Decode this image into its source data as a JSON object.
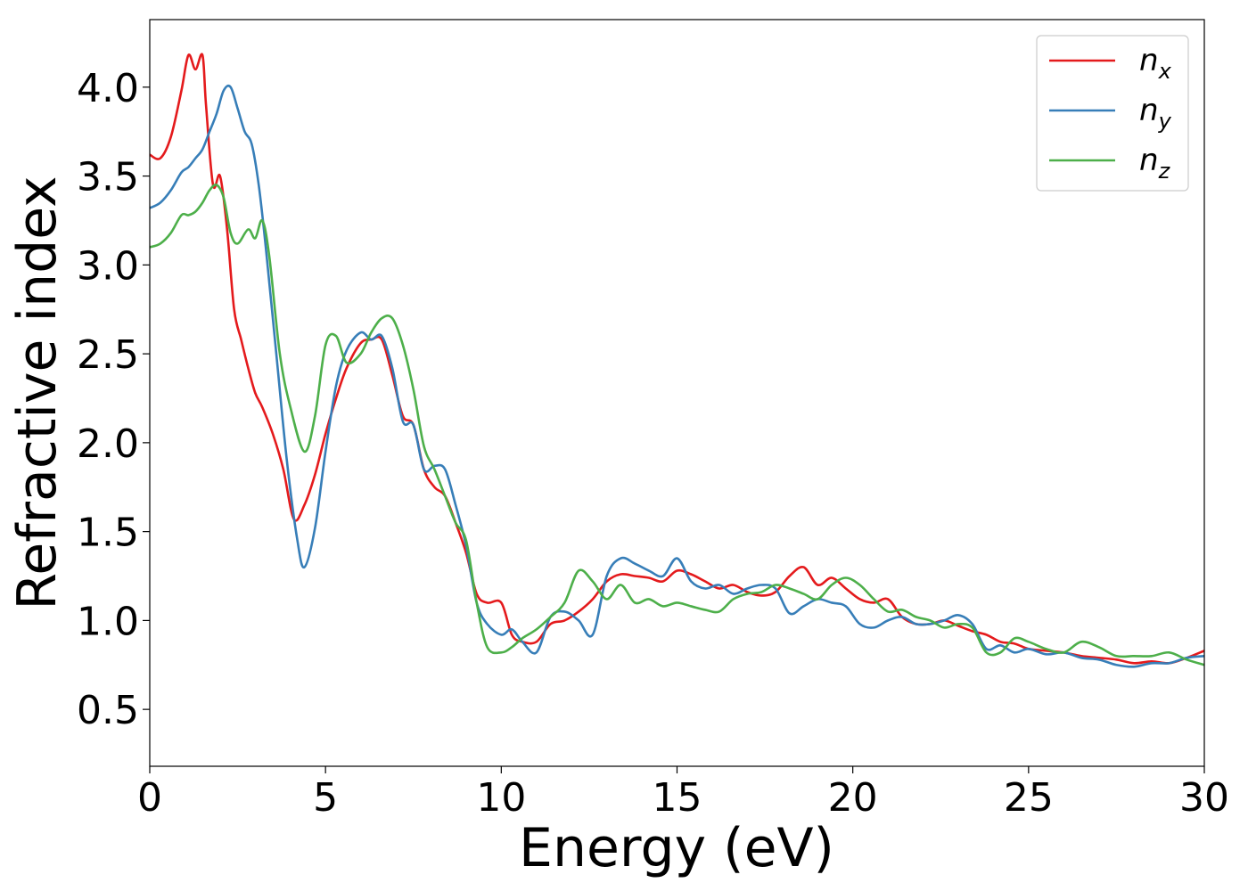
{
  "chart_data": {
    "type": "line",
    "xlabel": "Energy (eV)",
    "ylabel": "Refractive index",
    "xlim": [
      0,
      30
    ],
    "ylim": [
      0.18,
      4.38
    ],
    "x_ticks": [
      0,
      5,
      10,
      15,
      20,
      25,
      30
    ],
    "x_tick_labels": [
      "0",
      "5",
      "10",
      "15",
      "20",
      "25",
      "30"
    ],
    "y_ticks": [
      0.5,
      1.0,
      1.5,
      2.0,
      2.5,
      3.0,
      3.5,
      4.0
    ],
    "y_tick_labels": [
      "0.5",
      "1.0",
      "1.5",
      "2.0",
      "2.5",
      "3.0",
      "3.5",
      "4.0"
    ],
    "grid": false,
    "legend_position": "top-right",
    "series": [
      {
        "name": "n_x",
        "legend_base": "n",
        "legend_sub": "x",
        "color": "#e41a1c",
        "x": [
          0,
          0.3,
          0.6,
          0.9,
          1.1,
          1.3,
          1.5,
          1.6,
          1.8,
          2.0,
          2.2,
          2.4,
          2.6,
          2.8,
          3.0,
          3.2,
          3.5,
          3.8,
          4.1,
          4.4,
          4.7,
          5.0,
          5.3,
          5.6,
          6.0,
          6.3,
          6.6,
          6.9,
          7.2,
          7.5,
          7.8,
          8.1,
          8.4,
          8.7,
          9.0,
          9.3,
          9.6,
          10.0,
          10.3,
          10.6,
          11.0,
          11.4,
          11.8,
          12.2,
          12.6,
          13.0,
          13.4,
          13.8,
          14.2,
          14.6,
          15.0,
          15.4,
          15.8,
          16.2,
          16.6,
          17.0,
          17.4,
          17.8,
          18.2,
          18.6,
          19.0,
          19.4,
          19.8,
          20.2,
          20.6,
          21.0,
          21.4,
          21.8,
          22.2,
          22.6,
          23.0,
          23.4,
          23.8,
          24.2,
          24.6,
          25.0,
          25.5,
          26.0,
          26.5,
          27.0,
          27.5,
          28.0,
          28.5,
          29.0,
          29.5,
          30.0
        ],
        "y": [
          3.62,
          3.6,
          3.72,
          3.98,
          4.18,
          4.1,
          4.18,
          3.9,
          3.45,
          3.5,
          3.2,
          2.75,
          2.58,
          2.42,
          2.28,
          2.2,
          2.05,
          1.85,
          1.57,
          1.65,
          1.82,
          2.05,
          2.25,
          2.42,
          2.56,
          2.58,
          2.58,
          2.38,
          2.15,
          2.1,
          1.85,
          1.75,
          1.7,
          1.55,
          1.38,
          1.15,
          1.1,
          1.1,
          0.92,
          0.88,
          0.88,
          0.98,
          1.0,
          1.05,
          1.12,
          1.22,
          1.26,
          1.25,
          1.24,
          1.22,
          1.28,
          1.26,
          1.22,
          1.18,
          1.2,
          1.16,
          1.14,
          1.16,
          1.25,
          1.3,
          1.2,
          1.24,
          1.18,
          1.12,
          1.1,
          1.12,
          1.02,
          0.98,
          0.98,
          1.0,
          0.97,
          0.94,
          0.92,
          0.88,
          0.87,
          0.84,
          0.83,
          0.82,
          0.8,
          0.79,
          0.78,
          0.76,
          0.77,
          0.76,
          0.79,
          0.83
        ]
      },
      {
        "name": "n_y",
        "legend_base": "n",
        "legend_sub": "y",
        "color": "#377eb8",
        "x": [
          0,
          0.3,
          0.6,
          0.9,
          1.1,
          1.3,
          1.5,
          1.7,
          1.9,
          2.1,
          2.3,
          2.5,
          2.7,
          2.9,
          3.1,
          3.3,
          3.6,
          3.9,
          4.2,
          4.4,
          4.7,
          5.0,
          5.3,
          5.6,
          6.0,
          6.3,
          6.6,
          6.9,
          7.2,
          7.5,
          7.8,
          8.1,
          8.4,
          8.7,
          9.0,
          9.3,
          9.6,
          10.0,
          10.3,
          10.6,
          11.0,
          11.4,
          11.8,
          12.2,
          12.6,
          13.0,
          13.4,
          13.8,
          14.2,
          14.6,
          15.0,
          15.4,
          15.8,
          16.2,
          16.6,
          17.0,
          17.4,
          17.8,
          18.2,
          18.6,
          19.0,
          19.4,
          19.8,
          20.2,
          20.6,
          21.0,
          21.4,
          21.8,
          22.2,
          22.6,
          23.0,
          23.4,
          23.8,
          24.2,
          24.6,
          25.0,
          25.5,
          26.0,
          26.5,
          27.0,
          27.5,
          28.0,
          28.5,
          29.0,
          29.5,
          30.0
        ],
        "y": [
          3.32,
          3.35,
          3.42,
          3.52,
          3.55,
          3.6,
          3.65,
          3.75,
          3.85,
          3.98,
          4.0,
          3.88,
          3.75,
          3.68,
          3.45,
          3.1,
          2.5,
          1.9,
          1.45,
          1.3,
          1.52,
          1.95,
          2.32,
          2.52,
          2.62,
          2.58,
          2.6,
          2.42,
          2.12,
          2.1,
          1.85,
          1.87,
          1.85,
          1.65,
          1.42,
          1.1,
          0.98,
          0.92,
          0.95,
          0.88,
          0.82,
          1.02,
          1.05,
          1.0,
          0.92,
          1.25,
          1.35,
          1.32,
          1.28,
          1.25,
          1.35,
          1.22,
          1.18,
          1.2,
          1.15,
          1.18,
          1.2,
          1.18,
          1.04,
          1.08,
          1.12,
          1.1,
          1.08,
          0.98,
          0.96,
          1.0,
          1.02,
          0.98,
          0.98,
          1.0,
          1.03,
          0.98,
          0.84,
          0.86,
          0.82,
          0.84,
          0.81,
          0.82,
          0.79,
          0.78,
          0.75,
          0.74,
          0.76,
          0.76,
          0.79,
          0.8
        ]
      },
      {
        "name": "n_z",
        "legend_base": "n",
        "legend_sub": "z",
        "color": "#4daf4a",
        "x": [
          0,
          0.3,
          0.6,
          0.9,
          1.1,
          1.3,
          1.5,
          1.7,
          1.9,
          2.1,
          2.3,
          2.5,
          2.8,
          3.0,
          3.2,
          3.4,
          3.7,
          4.0,
          4.4,
          4.7,
          5.0,
          5.3,
          5.6,
          6.0,
          6.3,
          6.6,
          6.9,
          7.2,
          7.5,
          7.8,
          8.1,
          8.4,
          8.7,
          9.0,
          9.3,
          9.6,
          10.0,
          10.3,
          10.6,
          11.0,
          11.4,
          11.8,
          12.2,
          12.6,
          13.0,
          13.4,
          13.8,
          14.2,
          14.6,
          15.0,
          15.4,
          15.8,
          16.2,
          16.6,
          17.0,
          17.4,
          17.8,
          18.2,
          18.6,
          19.0,
          19.4,
          19.8,
          20.2,
          20.6,
          21.0,
          21.4,
          21.8,
          22.2,
          22.6,
          23.0,
          23.4,
          23.8,
          24.2,
          24.6,
          25.0,
          25.5,
          26.0,
          26.5,
          27.0,
          27.5,
          28.0,
          28.5,
          29.0,
          29.5,
          30.0
        ],
        "y": [
          3.1,
          3.12,
          3.18,
          3.28,
          3.28,
          3.3,
          3.35,
          3.42,
          3.45,
          3.38,
          3.18,
          3.12,
          3.2,
          3.15,
          3.25,
          3.05,
          2.5,
          2.2,
          1.95,
          2.15,
          2.55,
          2.6,
          2.45,
          2.5,
          2.62,
          2.7,
          2.7,
          2.55,
          2.3,
          1.98,
          1.85,
          1.7,
          1.55,
          1.45,
          1.1,
          0.85,
          0.82,
          0.85,
          0.9,
          0.95,
          1.02,
          1.1,
          1.28,
          1.22,
          1.12,
          1.2,
          1.1,
          1.12,
          1.08,
          1.1,
          1.08,
          1.06,
          1.05,
          1.12,
          1.15,
          1.16,
          1.2,
          1.18,
          1.15,
          1.12,
          1.2,
          1.24,
          1.2,
          1.12,
          1.05,
          1.06,
          1.02,
          1.0,
          0.96,
          0.98,
          0.96,
          0.82,
          0.82,
          0.9,
          0.88,
          0.84,
          0.82,
          0.88,
          0.85,
          0.8,
          0.8,
          0.8,
          0.82,
          0.78,
          0.75
        ]
      }
    ]
  }
}
